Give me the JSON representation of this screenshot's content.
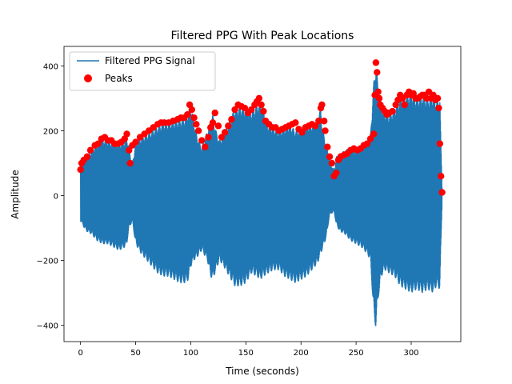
{
  "chart_data": {
    "type": "line",
    "title": "Filtered PPG With Peak Locations",
    "xlabel": "Time (seconds)",
    "ylabel": "Amplitude",
    "xlim": [
      -15,
      345
    ],
    "ylim": [
      -450,
      460
    ],
    "xticks": [
      0,
      50,
      100,
      150,
      200,
      250,
      300
    ],
    "xtick_labels": [
      "0",
      "50",
      "100",
      "150",
      "200",
      "250",
      "300"
    ],
    "yticks": [
      -400,
      -200,
      0,
      200,
      400
    ],
    "ytick_labels": [
      "−400",
      "−200",
      "0",
      "200",
      "400"
    ],
    "grid": false,
    "legend_position": "upper-left",
    "series": [
      {
        "name": "Filtered PPG Signal",
        "kind": "line",
        "color": "#1f77b4",
        "x": [
          0,
          5,
          10,
          15,
          20,
          25,
          30,
          35,
          40,
          42,
          44,
          47,
          50,
          55,
          60,
          65,
          70,
          75,
          80,
          85,
          90,
          95,
          98,
          100,
          103,
          106,
          110,
          115,
          118,
          120,
          123,
          126,
          130,
          135,
          140,
          145,
          150,
          155,
          160,
          163,
          166,
          170,
          175,
          180,
          185,
          190,
          195,
          200,
          205,
          210,
          215,
          218,
          220,
          223,
          226,
          230,
          232,
          235,
          240,
          245,
          250,
          255,
          260,
          263,
          266,
          268,
          270,
          273,
          276,
          280,
          285,
          290,
          295,
          300,
          305,
          310,
          315,
          320,
          323,
          326,
          328
        ],
        "upper": [
          90,
          120,
          140,
          160,
          175,
          170,
          165,
          160,
          170,
          185,
          150,
          100,
          165,
          180,
          190,
          200,
          215,
          225,
          225,
          230,
          235,
          240,
          260,
          280,
          230,
          180,
          150,
          200,
          230,
          250,
          200,
          170,
          190,
          230,
          270,
          275,
          270,
          260,
          280,
          290,
          270,
          220,
          210,
          200,
          210,
          220,
          200,
          210,
          220,
          220,
          240,
          270,
          200,
          160,
          110,
          80,
          120,
          130,
          140,
          150,
          140,
          150,
          170,
          190,
          350,
          410,
          340,
          280,
          260,
          250,
          270,
          300,
          310,
          320,
          300,
          310,
          300,
          310,
          290,
          300,
          30
        ],
        "lower": [
          -80,
          -110,
          -120,
          -140,
          -150,
          -150,
          -160,
          -170,
          -160,
          -150,
          -100,
          -80,
          -150,
          -180,
          -200,
          -220,
          -240,
          -250,
          -250,
          -260,
          -270,
          -270,
          -260,
          -220,
          -200,
          -190,
          -170,
          -200,
          -250,
          -260,
          -230,
          -200,
          -220,
          -250,
          -280,
          -280,
          -270,
          -240,
          -250,
          -260,
          -250,
          -240,
          -230,
          -230,
          -250,
          -260,
          -270,
          -260,
          -250,
          -230,
          -210,
          -180,
          -160,
          -130,
          -60,
          -50,
          -90,
          -110,
          -120,
          -140,
          -150,
          -160,
          -180,
          -200,
          -370,
          -410,
          -320,
          -250,
          -230,
          -240,
          -250,
          -280,
          -290,
          -300,
          -290,
          -300,
          -290,
          -300,
          -280,
          -290,
          -30
        ]
      },
      {
        "name": "Peaks",
        "kind": "scatter",
        "color": "#ff0000",
        "x": [
          0,
          1,
          3,
          6,
          9,
          13,
          16,
          19,
          22,
          25,
          28,
          31,
          34,
          37,
          40,
          42,
          44,
          45,
          47,
          50,
          54,
          58,
          62,
          66,
          70,
          73,
          76,
          80,
          84,
          88,
          91,
          94,
          97,
          99,
          101,
          103,
          105,
          107,
          110,
          113,
          116,
          118,
          120,
          122,
          125,
          128,
          131,
          134,
          137,
          140,
          143,
          146,
          149,
          152,
          155,
          158,
          160,
          162,
          164,
          166,
          168,
          171,
          174,
          177,
          180,
          183,
          186,
          189,
          192,
          195,
          198,
          201,
          204,
          207,
          210,
          213,
          216,
          218,
          219,
          221,
          222,
          224,
          226,
          228,
          230,
          232,
          234,
          236,
          239,
          242,
          245,
          248,
          251,
          254,
          257,
          260,
          263,
          266,
          267,
          268,
          269,
          270,
          271,
          272,
          274,
          276,
          278,
          280,
          283,
          286,
          288,
          290,
          292,
          294,
          296,
          298,
          300,
          302,
          304,
          306,
          308,
          310,
          312,
          314,
          316,
          318,
          320,
          322,
          324,
          325,
          326,
          327,
          328
        ],
        "y": [
          80,
          100,
          110,
          120,
          140,
          155,
          160,
          175,
          180,
          170,
          170,
          160,
          160,
          165,
          175,
          190,
          140,
          100,
          155,
          165,
          180,
          190,
          200,
          210,
          220,
          225,
          225,
          225,
          230,
          235,
          240,
          240,
          250,
          280,
          265,
          240,
          220,
          200,
          170,
          150,
          180,
          210,
          225,
          255,
          215,
          180,
          195,
          215,
          235,
          265,
          280,
          275,
          270,
          255,
          265,
          280,
          290,
          300,
          280,
          260,
          230,
          220,
          210,
          210,
          200,
          205,
          210,
          215,
          220,
          225,
          205,
          195,
          210,
          215,
          220,
          215,
          230,
          270,
          280,
          230,
          200,
          150,
          120,
          100,
          60,
          70,
          110,
          120,
          125,
          130,
          140,
          145,
          140,
          145,
          155,
          160,
          175,
          190,
          310,
          410,
          380,
          320,
          300,
          280,
          270,
          260,
          250,
          255,
          260,
          280,
          295,
          310,
          300,
          280,
          310,
          320,
          310,
          315,
          300,
          300,
          305,
          310,
          310,
          300,
          320,
          300,
          310,
          295,
          300,
          270,
          160,
          60,
          10
        ]
      }
    ]
  }
}
